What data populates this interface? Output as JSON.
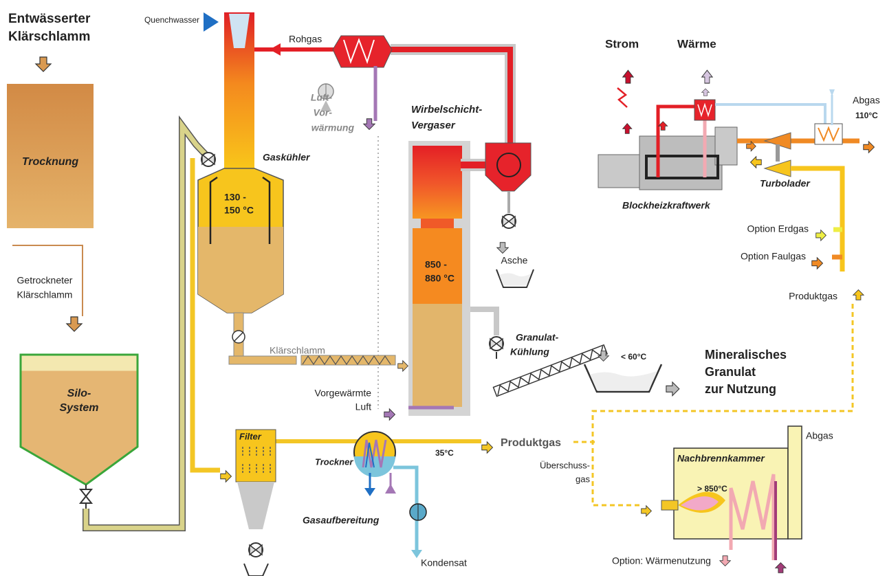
{
  "input": {
    "label": [
      "Entwässerter",
      "Klärschlamm"
    ]
  },
  "drying": {
    "label": "Trocknung"
  },
  "dried_sludge": {
    "label": [
      "Getrockneter",
      "Klärschlamm"
    ]
  },
  "silo": {
    "label": [
      "Silo-",
      "System"
    ]
  },
  "quench_water": "Quenchwasser",
  "raw_gas": "Rohgas",
  "air_preheating": [
    "Luft-",
    "Vor-",
    "wärmung"
  ],
  "gas_cooler": {
    "label": "Gaskühler",
    "temperature": [
      "130 -",
      "150 °C"
    ]
  },
  "gasifier": {
    "label": [
      "Wirbelschicht-",
      "Vergaser"
    ],
    "temperature": [
      "850 -",
      "880 °C"
    ]
  },
  "ash": "Asche",
  "sewage_sludge": "Klärschlamm",
  "preheated_air": [
    "Vorgewärmte",
    "Luft"
  ],
  "granulate_cooling": [
    "Granulat-",
    "Kühlung"
  ],
  "granulate_temperature": "< 60°C",
  "mineral_granulate": [
    "Mineralisches",
    "Granulat",
    "zur Nutzung"
  ],
  "chp": {
    "label": "Blockheizkraftwerk",
    "power": "Strom",
    "heat": "Wärme",
    "turbocharger": "Turbolader",
    "exhaust": "Abgas",
    "exhaust_temperature": "110°C"
  },
  "options": {
    "natural_gas": "Option Erdgas",
    "digester_gas": "Option Faulgas",
    "product_gas": "Produktgas"
  },
  "gas_treatment": {
    "label": "Gasaufbereitung",
    "filter": "Filter",
    "dryer": "Trockner",
    "temperature": "35°C",
    "product_gas": "Produktgas",
    "condensate": "Kondensat"
  },
  "excess_gas": [
    "Überschuss-",
    "gas"
  ],
  "afterburner": {
    "label": "Nachbrennkammer",
    "temperature": "> 850°C",
    "exhaust": "Abgas",
    "heat_use": "Option: Wärmenutzung"
  }
}
